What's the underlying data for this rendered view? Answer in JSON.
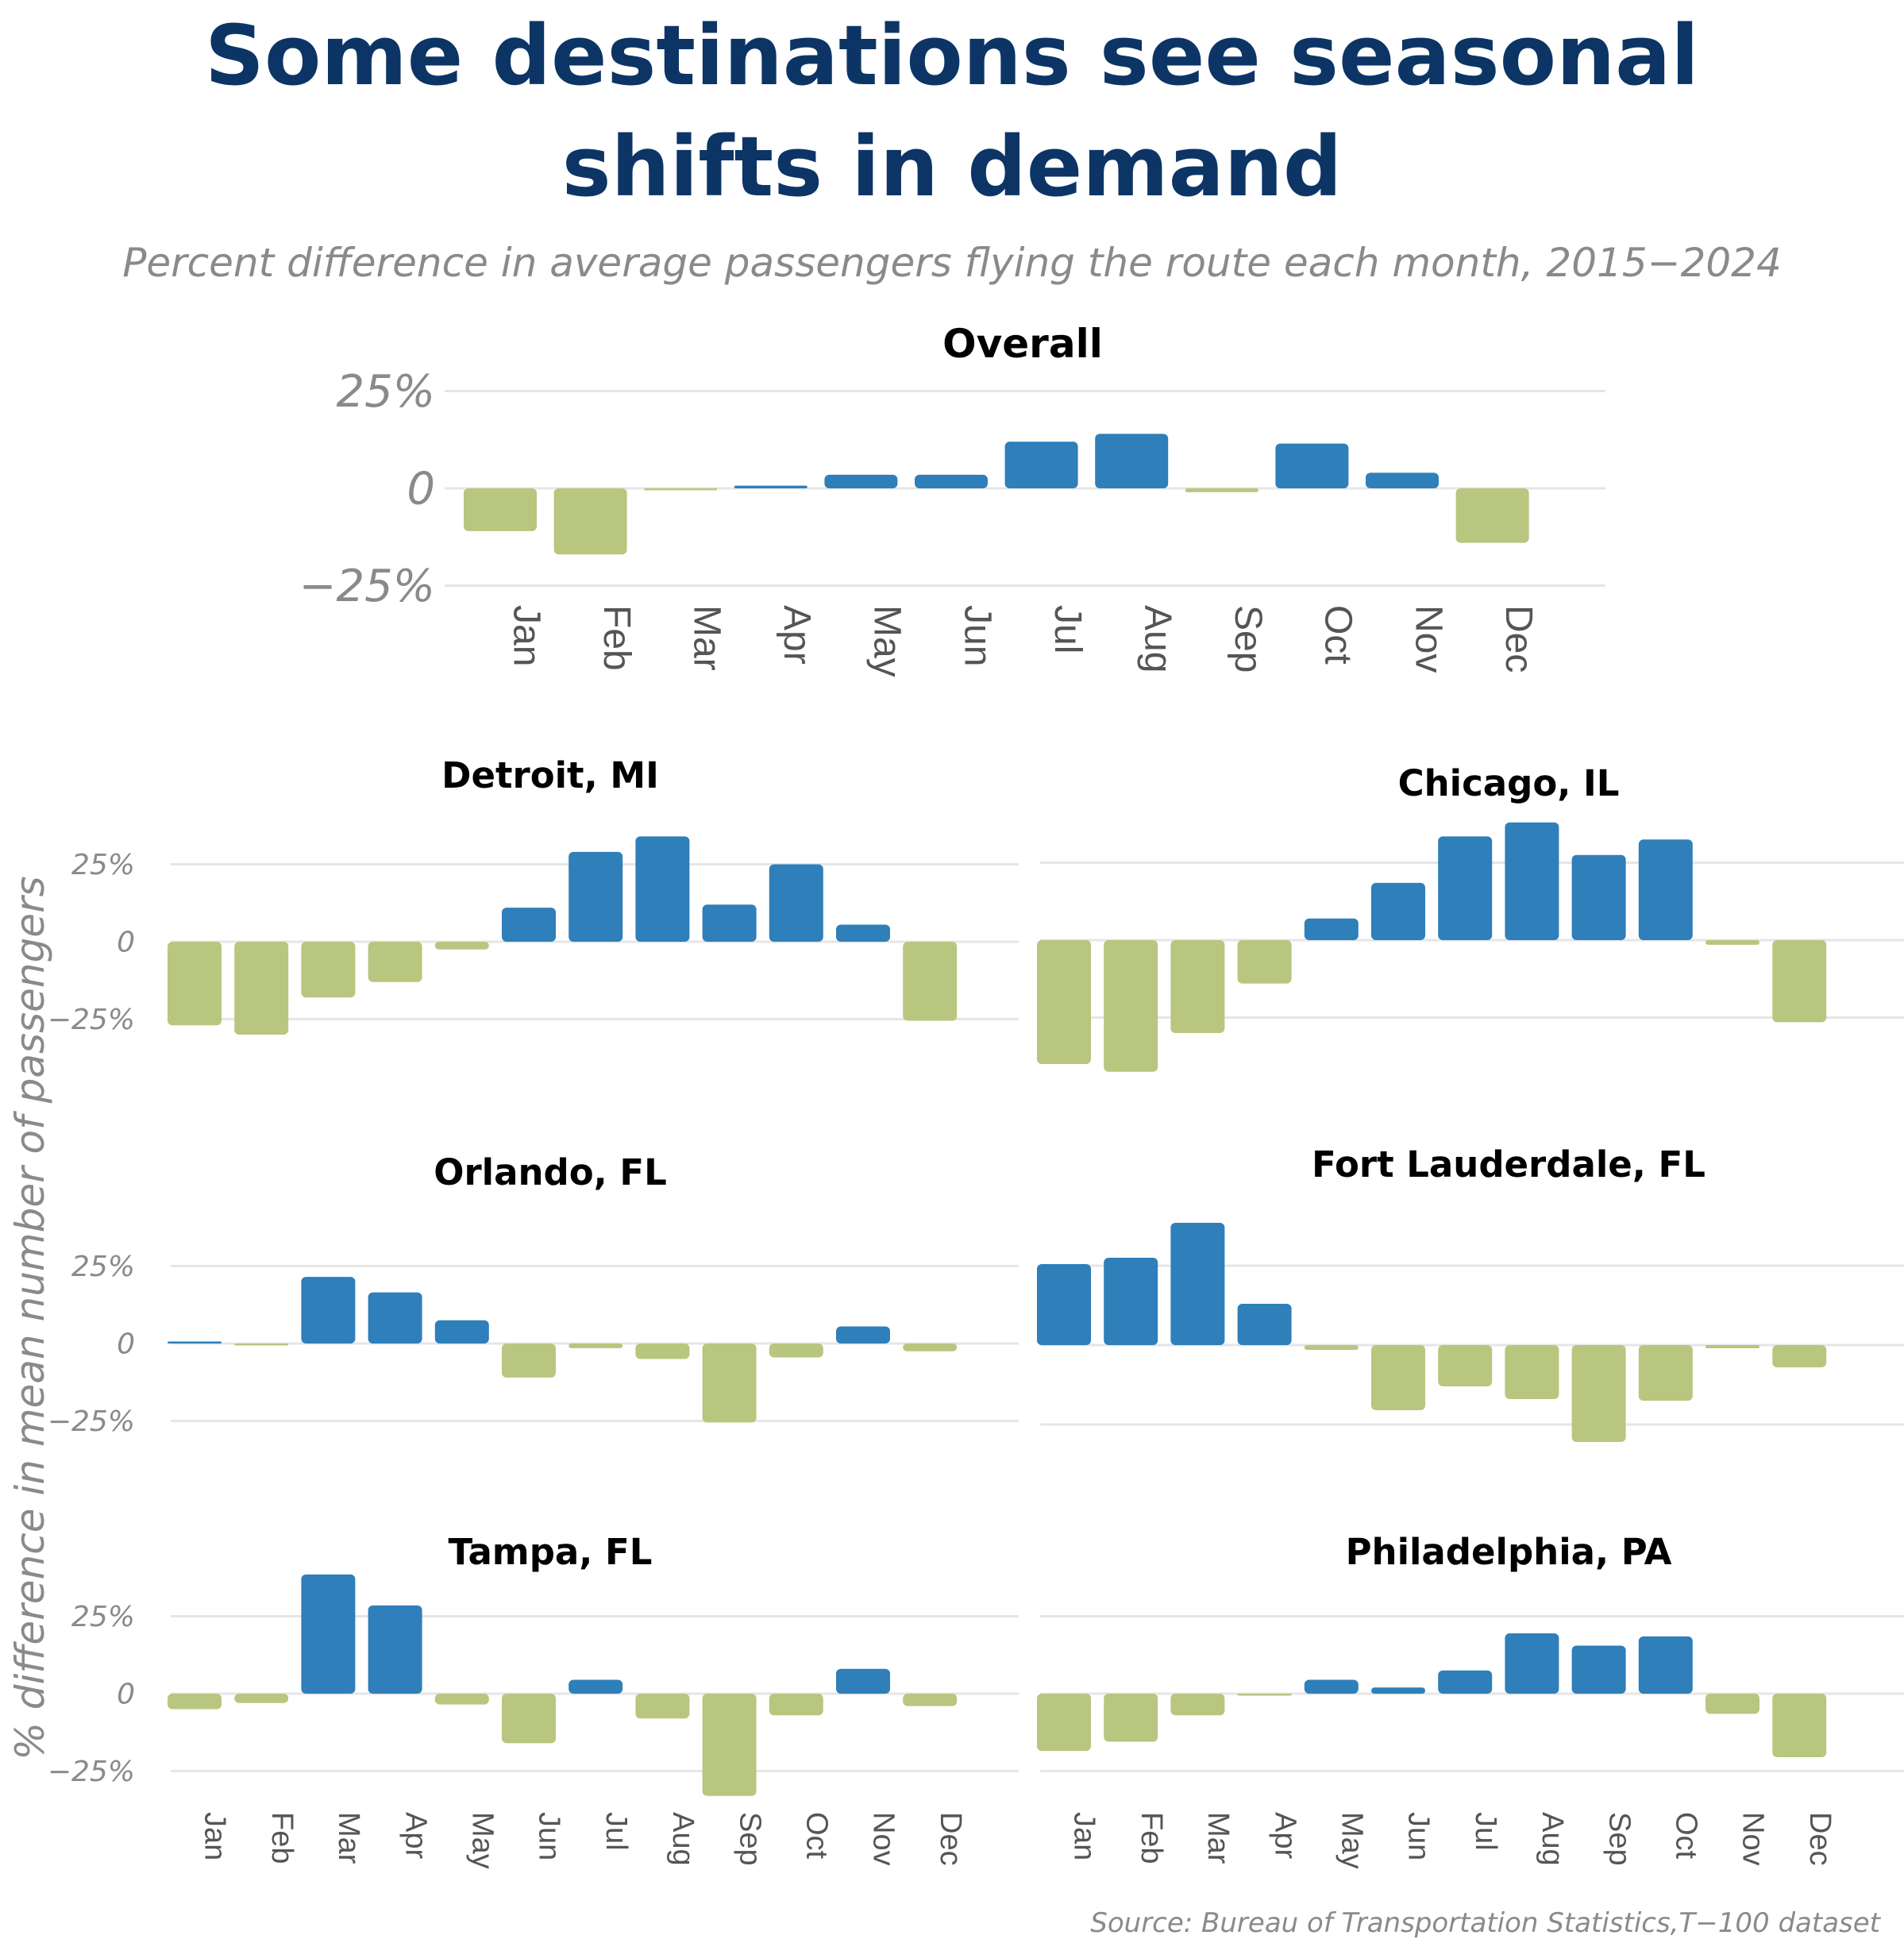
{
  "title": {
    "line1": "Some destinations see seasonal",
    "line2": "shifts in demand"
  },
  "subtitle": "Percent difference in average passengers flying the route each month, 2015−2024",
  "y_axis_label": "% difference in mean number of passengers",
  "source": "Source: Bureau of Transportation Statistics,T−100 dataset",
  "colors": {
    "positive": "#2e7fba",
    "negative": "#b8c67f",
    "grid": "#e6e6e6",
    "title": "#0c3566"
  },
  "chart_data": [
    {
      "type": "bar",
      "title": "Overall",
      "categories": [
        "Jan",
        "Feb",
        "Mar",
        "Apr",
        "May",
        "Jun",
        "Jul",
        "Aug",
        "Sep",
        "Oct",
        "Nov",
        "Dec"
      ],
      "values": [
        -11,
        -17,
        -0.3,
        0.7,
        3.5,
        3.5,
        12,
        14,
        -1,
        11.5,
        4,
        -14
      ],
      "yticks": [
        25,
        0,
        -25
      ],
      "ytick_labels": [
        "25%",
        "0",
        "−25%"
      ],
      "ylim": [
        -25,
        25
      ],
      "grid": true
    },
    {
      "type": "bar",
      "title": "Detroit, MI",
      "categories": [
        "Jan",
        "Feb",
        "Mar",
        "Apr",
        "May",
        "Jun",
        "Jul",
        "Aug",
        "Sep",
        "Oct",
        "Nov",
        "Dec"
      ],
      "values": [
        -27,
        -30,
        -18,
        -13,
        -2.5,
        11,
        29,
        34,
        12,
        25,
        5.5,
        -25.5
      ],
      "yticks": [
        25,
        0,
        -25
      ],
      "ytick_labels": [
        "25%",
        "0",
        "−25%"
      ],
      "ylim": [
        -31,
        34
      ],
      "grid": true
    },
    {
      "type": "bar",
      "title": "Chicago, IL",
      "categories": [
        "Jan",
        "Feb",
        "Mar",
        "Apr",
        "May",
        "Jun",
        "Jul",
        "Aug",
        "Sep",
        "Oct",
        "Nov",
        "Dec"
      ],
      "values": [
        -40,
        -42.5,
        -30,
        -14,
        7,
        18.5,
        33.5,
        38,
        27.5,
        32.5,
        -1.5,
        -26.5
      ],
      "yticks": [
        25,
        0,
        -25
      ],
      "ytick_labels": [
        "",
        "",
        ""
      ],
      "ylim": [
        -43,
        38
      ],
      "grid": true
    },
    {
      "type": "bar",
      "title": "Orlando, FL",
      "categories": [
        "Jan",
        "Feb",
        "Mar",
        "Apr",
        "May",
        "Jun",
        "Jul",
        "Aug",
        "Sep",
        "Oct",
        "Nov",
        "Dec"
      ],
      "values": [
        0.3,
        -0.3,
        21.5,
        16.5,
        7.5,
        -11,
        -1.5,
        -5,
        -25.5,
        -4.5,
        5.5,
        -2.5
      ],
      "yticks": [
        25,
        0,
        -25
      ],
      "ytick_labels": [
        "25%",
        "0",
        "−25%"
      ],
      "ylim": [
        -26,
        25
      ],
      "grid": true
    },
    {
      "type": "bar",
      "title": "Fort Lauderdale, FL",
      "categories": [
        "Jan",
        "Feb",
        "Mar",
        "Apr",
        "May",
        "Jun",
        "Jul",
        "Aug",
        "Sep",
        "Oct",
        "Nov",
        "Dec"
      ],
      "values": [
        25.5,
        27.5,
        38.5,
        13,
        -1.5,
        -20.5,
        -13,
        -17,
        -30.5,
        -17.5,
        -1,
        -7
      ],
      "yticks": [
        25,
        0,
        -25
      ],
      "ytick_labels": [
        "",
        "",
        ""
      ],
      "ylim": [
        -31,
        39
      ],
      "grid": true
    },
    {
      "type": "bar",
      "title": "Tampa, FL",
      "categories": [
        "Jan",
        "Feb",
        "Mar",
        "Apr",
        "May",
        "Jun",
        "Jul",
        "Aug",
        "Sep",
        "Oct",
        "Nov",
        "Dec"
      ],
      "values": [
        -5,
        -3,
        38.5,
        28.5,
        -3.5,
        -16,
        4.5,
        -8,
        -33,
        -7,
        8,
        -4
      ],
      "yticks": [
        25,
        0,
        -25
      ],
      "ytick_labels": [
        "25%",
        "0",
        "−25%"
      ],
      "ylim": [
        -33,
        39
      ],
      "grid": true
    },
    {
      "type": "bar",
      "title": "Philadelphia, PA",
      "categories": [
        "Jan",
        "Feb",
        "Mar",
        "Apr",
        "May",
        "Jun",
        "Jul",
        "Aug",
        "Sep",
        "Oct",
        "Nov",
        "Dec"
      ],
      "values": [
        -18.5,
        -15.5,
        -7,
        -0.3,
        4.5,
        2,
        7.5,
        19.5,
        15.5,
        18.5,
        -6.5,
        -20.5
      ],
      "yticks": [
        25,
        0,
        -25
      ],
      "ytick_labels": [
        "",
        "",
        ""
      ],
      "ylim": [
        -21,
        25
      ],
      "grid": true
    }
  ]
}
